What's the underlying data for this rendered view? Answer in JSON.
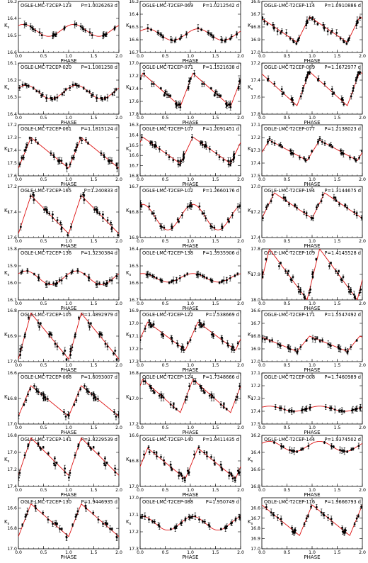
{
  "figure": {
    "xlabel": "PHASE",
    "ylabel": "K",
    "ylabel_subscript": "s",
    "x_ticks": [
      "0.0",
      "0.5",
      "1.0",
      "1.5",
      "2.0"
    ],
    "xlim": [
      0,
      2
    ],
    "curve_color": "#dd1111",
    "point_color": "#000000"
  },
  "chart_data": [
    {
      "type": "scatter",
      "title": "OGLE-LMC-T2CEP-123",
      "period": "P=1.0026263 d",
      "ylim": [
        16.3,
        16.6
      ],
      "yticks": [
        "16.3",
        "16.4",
        "16.5",
        "16.6"
      ],
      "mean": 16.47,
      "amp": 0.035,
      "shape": "sin",
      "phase0": 0.15
    },
    {
      "type": "scatter",
      "title": "OGLE-LMC-T2CEP-069",
      "period": "P=1.0212542 d",
      "ylim": [
        16.3,
        16.7
      ],
      "yticks": [
        "16.3",
        "16.4",
        "16.5",
        "16.6",
        "16.7"
      ],
      "mean": 16.56,
      "amp": 0.045,
      "shape": "sin",
      "phase0": 0.1
    },
    {
      "type": "scatter",
      "title": "OGLE-LMC-T2CEP-114",
      "period": "P=1.0910886 d",
      "ylim": [
        16.6,
        17.0
      ],
      "yticks": [
        "16.6",
        "16.7",
        "16.8",
        "16.9",
        "17.0"
      ],
      "mean": 16.82,
      "amp": 0.1,
      "shape": "saw",
      "phase0": 0.3
    },
    {
      "type": "scatter",
      "title": "OGLE-LMC-T2CEP-020",
      "period": "P=1.1081258 d",
      "ylim": [
        16.1,
        16.4
      ],
      "yticks": [
        "16.1",
        "16.2",
        "16.3",
        "16.4"
      ],
      "mean": 16.27,
      "amp": 0.04,
      "shape": "sin",
      "phase0": 0.1
    },
    {
      "type": "scatter",
      "title": "OGLE-LMC-T2CEP-071",
      "period": "P=1.1521638 d",
      "ylim": [
        17.0,
        17.8
      ],
      "yticks": [
        "17.0",
        "17.2",
        "17.4",
        "17.6",
        "17.8"
      ],
      "mean": 17.42,
      "amp": 0.26,
      "shape": "saw",
      "phase0": 0.2
    },
    {
      "type": "scatter",
      "title": "OGLE-LMC-T2CEP-089",
      "period": "P=1.1672977 d",
      "ylim": [
        17.2,
        17.8
      ],
      "yticks": [
        "17.2",
        "17.4",
        "17.6",
        "17.8"
      ],
      "mean": 17.5,
      "amp": 0.2,
      "shape": "saw",
      "phase0": 0.3
    },
    {
      "type": "scatter",
      "title": "OGLE-LMC-T2CEP-061",
      "period": "P=1.1815124 d",
      "ylim": [
        17.2,
        17.6
      ],
      "yticks": [
        "17.2",
        "17.3",
        "17.4",
        "17.5",
        "17.6"
      ],
      "mean": 17.42,
      "amp": 0.12,
      "shape": "saw",
      "phase0": 0.0
    },
    {
      "type": "scatter",
      "title": "OGLE-LMC-T2CEP-107",
      "period": "P=1.2091451 d",
      "ylim": [
        16.3,
        16.8
      ],
      "yticks": [
        "16.3",
        "16.4",
        "16.5",
        "16.6",
        "16.7",
        "16.8"
      ],
      "mean": 16.55,
      "amp": 0.13,
      "shape": "saw",
      "phase0": 0.2
    },
    {
      "type": "scatter",
      "title": "OGLE-LMC-T2CEP-077",
      "period": "P=1.2138023 d",
      "ylim": [
        17.1,
        17.5
      ],
      "yticks": [
        "17.1",
        "17.2",
        "17.3",
        "17.4",
        "17.5"
      ],
      "mean": 17.3,
      "amp": 0.08,
      "shape": "saw",
      "phase0": 0.1
    },
    {
      "type": "scatter",
      "title": "OGLE-LMC-T2CEP-165",
      "period": "P=1.240833 d",
      "ylim": [
        17.2,
        17.6
      ],
      "yticks": [
        "17.2",
        "17.4",
        "17.6"
      ],
      "mean": 17.42,
      "amp": 0.15,
      "shape": "saw",
      "phase0": 0.0
    },
    {
      "type": "scatter",
      "title": "OGLE-LMC-T2CEP-102",
      "period": "P=1.2660176 d",
      "ylim": [
        16.7,
        16.9
      ],
      "yticks": [
        "16.7",
        "16.8",
        "16.9"
      ],
      "mean": 16.82,
      "amp": 0.05,
      "shape": "sin",
      "phase0": 0.2
    },
    {
      "type": "scatter",
      "title": "OGLE-LMC-T2CEP-194",
      "period": "P=1.3144675 d",
      "ylim": [
        17.0,
        17.4
      ],
      "yticks": [
        "17.0",
        "17.2",
        "17.4"
      ],
      "mean": 17.15,
      "amp": 0.1,
      "shape": "saw",
      "phase0": 0.0
    },
    {
      "type": "scatter",
      "title": "OGLE-LMC-T2CEP-136",
      "period": "P=1.3230384 d",
      "ylim": [
        15.8,
        16.1
      ],
      "yticks": [
        "15.8",
        "15.9",
        "16.0",
        "16.1"
      ],
      "mean": 15.97,
      "amp": 0.04,
      "shape": "sin",
      "phase0": 0.1
    },
    {
      "type": "scatter",
      "title": "OGLE-LMC-T2CEP-138",
      "period": "P=1.3935906 d",
      "ylim": [
        16.4,
        16.7
      ],
      "yticks": [
        "16.4",
        "16.5",
        "16.6",
        "16.7"
      ],
      "mean": 16.57,
      "amp": 0.025,
      "shape": "sin",
      "phase0": 0.2
    },
    {
      "type": "scatter",
      "title": "OGLE-LMC-T2CEP-109",
      "period": "P=1.4145528 d",
      "ylim": [
        17.8,
        18.0
      ],
      "yticks": [
        "17.8",
        "17.9",
        "18.0"
      ],
      "mean": 17.9,
      "amp": 0.1,
      "shape": "saw",
      "phase0": 0.1
    },
    {
      "type": "scatter",
      "title": "OGLE-LMC-T2CEP-105",
      "period": "P=1.4892979 d",
      "ylim": [
        16.8,
        17.0
      ],
      "yticks": [
        "16.8",
        "16.9",
        "17.0"
      ],
      "mean": 16.9,
      "amp": 0.09,
      "shape": "saw",
      "phase0": 0.0
    },
    {
      "type": "scatter",
      "title": "OGLE-LMC-T2CEP-122",
      "period": "P=1.538669 d",
      "ylim": [
        16.9,
        17.3
      ],
      "yticks": [
        "16.9",
        "17.0",
        "17.1",
        "17.2",
        "17.3"
      ],
      "mean": 17.1,
      "amp": 0.11,
      "shape": "saw",
      "phase0": 0.1
    },
    {
      "type": "scatter",
      "title": "OGLE-LMC-T2CEP-171",
      "period": "P=1.5547492 d",
      "ylim": [
        16.6,
        17.0
      ],
      "yticks": [
        "16.6",
        "16.7",
        "16.8",
        "16.9",
        "17.0"
      ],
      "mean": 16.86,
      "amp": 0.06,
      "shape": "saw",
      "phase0": 0.3
    },
    {
      "type": "scatter",
      "title": "OGLE-LMC-T2CEP-068",
      "period": "P=1.6093007 d",
      "ylim": [
        16.6,
        17.0
      ],
      "yticks": [
        "16.6",
        "16.8",
        "17.0"
      ],
      "mean": 16.82,
      "amp": 0.12,
      "shape": "saw",
      "phase0": 0.0
    },
    {
      "type": "scatter",
      "title": "OGLE-LMC-T2CEP-124",
      "period": "P=1.7348666 d",
      "ylim": [
        16.8,
        17.2
      ],
      "yticks": [
        "16.8",
        "17.0",
        "17.2"
      ],
      "mean": 16.98,
      "amp": 0.13,
      "shape": "saw",
      "phase0": 0.2
    },
    {
      "type": "scatter",
      "title": "OGLE-LMC-T2CEP-008",
      "period": "P=1.7460989 d",
      "ylim": [
        17.1,
        17.5
      ],
      "yticks": [
        "17.1",
        "17.2",
        "17.3",
        "17.4",
        "17.5"
      ],
      "mean": 17.38,
      "amp": 0.02,
      "shape": "sin",
      "phase0": 0.1
    },
    {
      "type": "scatter",
      "title": "OGLE-LMC-T2CEP-141",
      "period": "P=1.8229539 d",
      "ylim": [
        16.8,
        17.4
      ],
      "yticks": [
        "16.8",
        "17.0",
        "17.2",
        "17.4"
      ],
      "mean": 17.05,
      "amp": 0.22,
      "shape": "saw",
      "phase0": 0.0
    },
    {
      "type": "scatter",
      "title": "OGLE-LMC-T2CEP-140",
      "period": "P=1.8411435 d",
      "ylim": [
        16.6,
        17.0
      ],
      "yticks": [
        "16.6",
        "16.8",
        "17.0"
      ],
      "mean": 16.82,
      "amp": 0.12,
      "shape": "saw",
      "phase0": 0.1
    },
    {
      "type": "scatter",
      "title": "OGLE-LMC-T2CEP-144",
      "period": "P=1.9374502 d",
      "ylim": [
        16.2,
        16.8
      ],
      "yticks": [
        "16.2",
        "16.4",
        "16.6",
        "16.8"
      ],
      "mean": 16.33,
      "amp": 0.06,
      "shape": "sin",
      "phase0": 0.1
    },
    {
      "type": "scatter",
      "title": "OGLE-LMC-T2CEP-130",
      "period": "P=1.9446935 d",
      "ylim": [
        16.5,
        17.0
      ],
      "yticks": [
        "16.6",
        "16.8",
        "17.0"
      ],
      "mean": 16.72,
      "amp": 0.16,
      "shape": "saw",
      "phase0": 0.0
    },
    {
      "type": "scatter",
      "title": "OGLE-LMC-T2CEP-088",
      "period": "P=1.950749 d",
      "ylim": [
        17.0,
        17.3
      ],
      "yticks": [
        "17.0",
        "17.1",
        "17.2",
        "17.3"
      ],
      "mean": 17.15,
      "amp": 0.04,
      "shape": "sin",
      "phase0": 0.2
    },
    {
      "type": "scatter",
      "title": "OGLE-LMC-T2CEP-116",
      "period": "P=1.9666793 d",
      "ylim": [
        16.5,
        17.0
      ],
      "yticks": [
        "16.6",
        "16.7",
        "16.8",
        "16.9",
        "17.0"
      ],
      "mean": 16.72,
      "amp": 0.15,
      "shape": "saw",
      "phase0": 0.25
    }
  ]
}
